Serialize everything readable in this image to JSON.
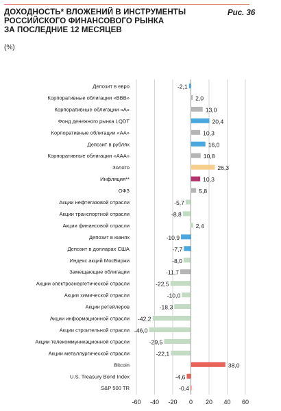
{
  "header": {
    "title_lines": [
      "Доходность* вложений в инструменты",
      "российского финансового рынка",
      "за последние 12 месяцев"
    ],
    "unit": "(%)",
    "figure_label": "Рис. 36"
  },
  "chart_data": {
    "type": "bar",
    "orientation": "horizontal",
    "categories": [
      "Депозит в евро",
      "Корпоративные облигации «BBB»",
      "Корпоративные облигации «A»",
      "Фонд денежного рынка LQDT",
      "Корпоративные облигации «AA»",
      "Депозит в рублях",
      "Корпоративные облигации «AAA»",
      "Золото",
      "Инфляция**",
      "ОФЗ",
      "Акции нефтегазовой отрасли",
      "Акции транспортной отрасли",
      "Акции финансовой отрасли",
      "Депозит в юанях",
      "Депозит в долларах США",
      "Индекс акций МосБиржи",
      "Замещающие облигации",
      "Акции электроэнергетической отрасли",
      "Акции химической отрасли",
      "Акции ретейлеров",
      "Акции информационной отрасли",
      "Акции строительной отрасли",
      "Акции телекоммуникационной отрасли",
      "Акции металлургической отрасли",
      "Bitcoin",
      "U.S. Treasury Bond Index",
      "S&P 500 TR"
    ],
    "values": [
      -2.1,
      2.0,
      13.0,
      20.4,
      10.3,
      16.0,
      10.8,
      26.3,
      10.3,
      5.8,
      -5.7,
      -8.8,
      2.4,
      -10.9,
      -7.7,
      -8.0,
      -11.7,
      -22.5,
      -10.0,
      -18.3,
      -42.2,
      -46.0,
      -29.5,
      -22.1,
      38.0,
      -4.6,
      -0.4
    ],
    "value_labels": [
      "-2,1",
      "2,0",
      "13,0",
      "20,4",
      "10,3",
      "16,0",
      "10,8",
      "26,3",
      "10,3",
      "5,8",
      "-5,7",
      "-8,8",
      "2,4",
      "-10,9",
      "-7,7",
      "-8,0",
      "-11,7",
      "-22,5",
      "-10,0",
      "-18,3",
      "-42,2",
      "-46,0",
      "-29,5",
      "-22,1",
      "38,0",
      "-4,6",
      "-0,4"
    ],
    "colors": [
      "#4aa8df",
      "#b5b5b5",
      "#b5b5b5",
      "#4aa8df",
      "#b5b5b5",
      "#4aa8df",
      "#b5b5b5",
      "#f6cf8c",
      "#b3336e",
      "#b5b5b5",
      "#c3dbc3",
      "#c3dbc3",
      "#c3dbc3",
      "#4aa8df",
      "#4aa8df",
      "#c3dbc3",
      "#b5b5b5",
      "#c3dbc3",
      "#c3dbc3",
      "#c3dbc3",
      "#c3dbc3",
      "#c3dbc3",
      "#c3dbc3",
      "#c3dbc3",
      "#e8645a",
      "#e8645a",
      "#e8645a"
    ],
    "xlim": [
      -60,
      60
    ],
    "x_ticks": [
      -60,
      -40,
      -20,
      0,
      20,
      40,
      60
    ],
    "grid": true,
    "title": "Доходность* вложений в инструменты российского финансового рынка за последние 12 месяцев",
    "xlabel": "",
    "ylabel": ""
  }
}
